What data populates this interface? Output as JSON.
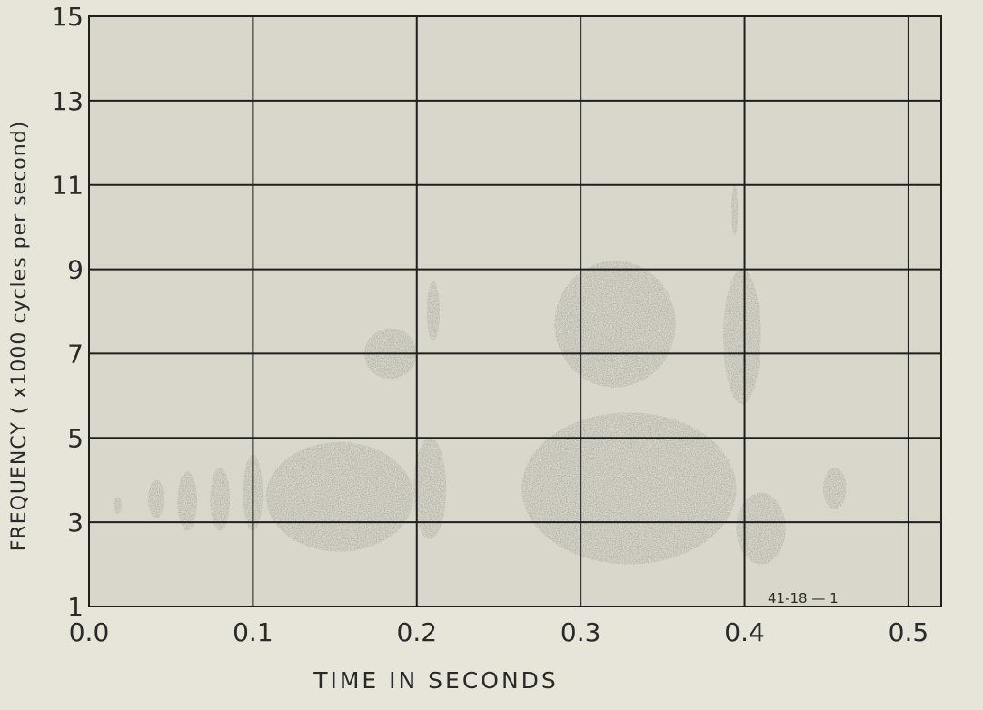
{
  "chart_data": {
    "type": "spectrogram",
    "xlabel": "TIME IN SECONDS",
    "ylabel": "FREQUENCY  ( x1000  cycles  per  second)",
    "xlim": [
      0.0,
      0.52
    ],
    "ylim": [
      1,
      15
    ],
    "xticks": [
      "0.0",
      "0.1",
      "0.2",
      "0.3",
      "0.4",
      "0.5"
    ],
    "yticks": [
      "1",
      "3",
      "5",
      "7",
      "9",
      "11",
      "13",
      "15"
    ],
    "grid": true,
    "annotation": "41-18 — 1",
    "series": [
      {
        "values": [
          {
            "t0": 0.015,
            "t1": 0.02,
            "f0": 3.2,
            "f1": 3.6
          },
          {
            "t0": 0.036,
            "t1": 0.046,
            "f0": 3.1,
            "f1": 4.0
          },
          {
            "t0": 0.054,
            "t1": 0.066,
            "f0": 2.8,
            "f1": 4.2
          },
          {
            "t0": 0.074,
            "t1": 0.086,
            "f0": 2.8,
            "f1": 4.3
          },
          {
            "t0": 0.094,
            "t1": 0.106,
            "f0": 2.8,
            "f1": 4.6
          },
          {
            "t0": 0.108,
            "t1": 0.198,
            "f0": 2.3,
            "f1": 4.9
          },
          {
            "t0": 0.198,
            "t1": 0.218,
            "f0": 2.6,
            "f1": 5.0
          },
          {
            "t0": 0.168,
            "t1": 0.2,
            "f0": 6.4,
            "f1": 7.6
          },
          {
            "t0": 0.206,
            "t1": 0.214,
            "f0": 7.3,
            "f1": 8.7
          },
          {
            "t0": 0.264,
            "t1": 0.395,
            "f0": 2.0,
            "f1": 5.6
          },
          {
            "t0": 0.284,
            "t1": 0.358,
            "f0": 6.2,
            "f1": 9.2
          },
          {
            "t0": 0.387,
            "t1": 0.41,
            "f0": 5.8,
            "f1": 9.0
          },
          {
            "t0": 0.392,
            "t1": 0.396,
            "f0": 9.8,
            "f1": 11.0
          },
          {
            "t0": 0.395,
            "t1": 0.425,
            "f0": 2.0,
            "f1": 3.7
          },
          {
            "t0": 0.448,
            "t1": 0.462,
            "f0": 3.3,
            "f1": 4.3
          }
        ]
      }
    ]
  }
}
